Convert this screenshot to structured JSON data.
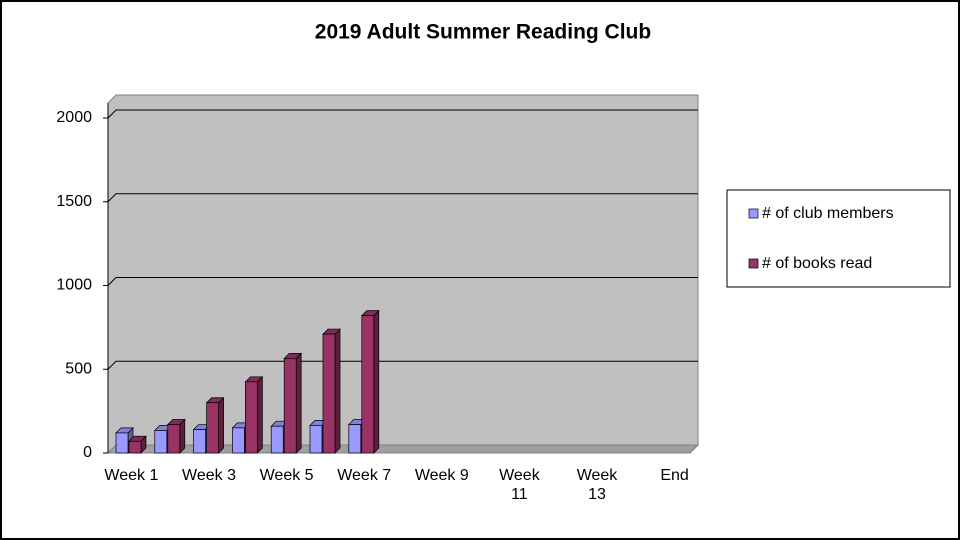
{
  "chart_data": {
    "type": "bar",
    "title": "2019 Adult  Summer Reading Club",
    "categories": [
      "Week 1",
      null,
      "Week 3",
      null,
      "Week 5",
      null,
      "Week 7",
      null,
      "Week 9",
      null,
      "Week 11",
      null,
      "Week 13",
      null,
      "End"
    ],
    "series": [
      {
        "name": "# of club members",
        "color": "#9999ff",
        "values": [
          120,
          135,
          140,
          150,
          160,
          165,
          170,
          null,
          null,
          null,
          null,
          null,
          null,
          null,
          null
        ]
      },
      {
        "name": "# of books read",
        "color": "#993366",
        "values": [
          70,
          170,
          300,
          425,
          565,
          710,
          820,
          null,
          null,
          null,
          null,
          null,
          null,
          null,
          null
        ]
      }
    ],
    "ylim": [
      0,
      2000
    ],
    "yticks": [
      0,
      500,
      1000,
      1500,
      2000
    ],
    "grid": true,
    "legend": "right"
  }
}
